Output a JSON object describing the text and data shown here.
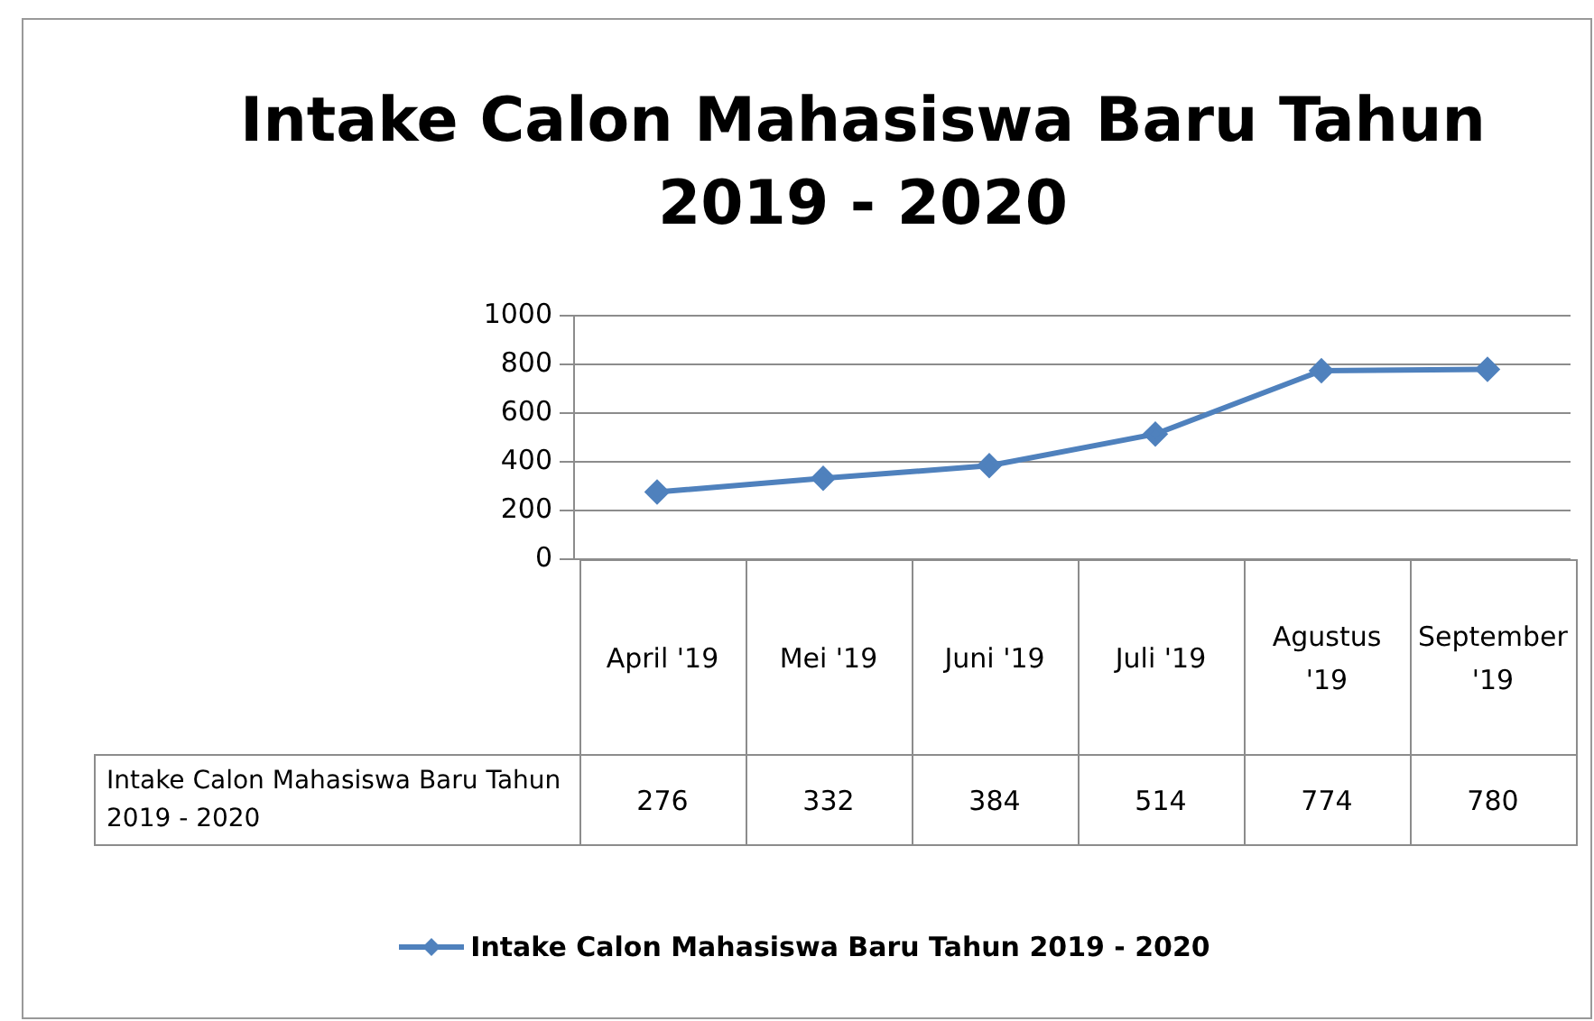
{
  "chart_data": {
    "type": "line",
    "title": "Intake Calon Mahasiswa Baru Tahun 2019 - 2020",
    "categories": [
      "April '19",
      "Mei '19",
      "Juni '19",
      "Juli '19",
      "Agustus '19",
      "September '19"
    ],
    "series": [
      {
        "name": "Intake Calon Mahasiswa Baru Tahun 2019 - 2020",
        "color": "#4f81bd",
        "values": [
          276,
          332,
          384,
          514,
          774,
          780
        ]
      }
    ],
    "ylim": [
      0,
      1000
    ],
    "yticks": [
      0,
      200,
      400,
      600,
      800,
      1000
    ],
    "grid": "y",
    "legend": "bottom",
    "marker": "diamond",
    "line_style": "solid",
    "data_labels": true
  }
}
